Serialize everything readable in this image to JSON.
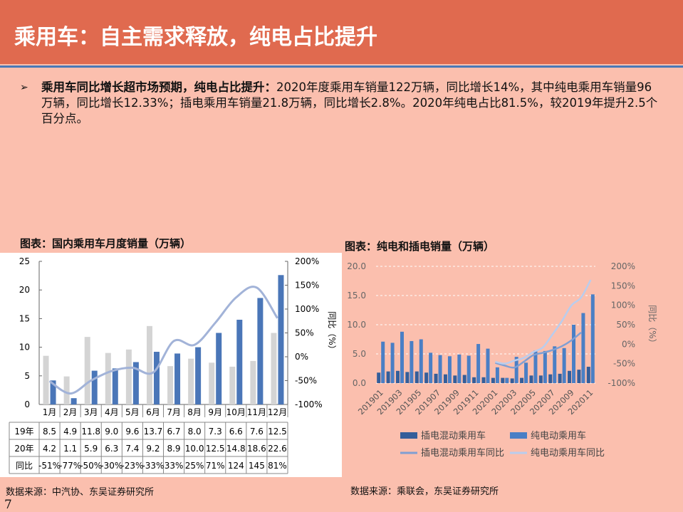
{
  "header": {
    "title": "乘用车：自主需求释放，纯电占比提升"
  },
  "bullet": {
    "marker": "➢",
    "lead": "乘用车同比增长超市场预期，纯电占比提升：",
    "text": "2020年度乘用车销量122万辆，同比增长14%，其中纯电乘用车销量96万辆，同比增长12.33%；插电乘用车销量21.8万辆，同比增长2.8%。2020年纯电占比81.5%，较2019年提升2.5个百分点。"
  },
  "chart_left_title": "图表：国内乘用车月度销量（万辆）",
  "chart_right_title": "图表：纯电和插电销量（万辆）",
  "source_left": "数据来源：中汽协、东吴证券研究所",
  "source_right": "数据来源：乘联会，东吴证券研究所",
  "page_number": "7",
  "colors": {
    "header_bg": "#e06a4f",
    "page_bg": "#fbbfae",
    "series_2019": "#d4d4d4",
    "series_2020": "#4a76b8",
    "yoy_line": "#a2b3d8",
    "phev": "#345e9a",
    "bev": "#4a7fc5",
    "phev_yoy": "#7f9fd3",
    "bev_yoy": "#b9cdee"
  },
  "chart_data": [
    {
      "type": "bar",
      "categories": [
        "1月",
        "2月",
        "3月",
        "4月",
        "5月",
        "6月",
        "7月",
        "8月",
        "9月",
        "10月",
        "11月",
        "12月"
      ],
      "series": [
        {
          "name": "19年",
          "values": [
            8.5,
            4.9,
            11.8,
            9.0,
            9.6,
            13.7,
            6.7,
            8.0,
            7.3,
            6.6,
            7.6,
            12.5
          ]
        },
        {
          "name": "20年",
          "values": [
            4.2,
            1.1,
            5.9,
            6.3,
            7.4,
            9.2,
            8.9,
            10.0,
            12.5,
            14.8,
            18.6,
            22.6
          ]
        },
        {
          "name": "同比",
          "axis": "right",
          "type": "line",
          "values": [
            -51,
            -77,
            -50,
            -30,
            -23,
            -33,
            33,
            25,
            71,
            124,
            145,
            81
          ]
        }
      ],
      "table": {
        "row_labels": [
          "19年",
          "20年",
          "同比"
        ],
        "rows": [
          [
            "8.5",
            "4.9",
            "11.8",
            "9.0",
            "9.6",
            "13.7",
            "6.7",
            "8.0",
            "7.3",
            "6.6",
            "7.6",
            "12.5"
          ],
          [
            "4.2",
            "1.1",
            "5.9",
            "6.3",
            "7.4",
            "9.2",
            "8.9",
            "10.0",
            "12.5",
            "14.8",
            "18.6",
            "22.6"
          ],
          [
            "-51%",
            "-77%",
            "-50%",
            "-30%",
            "-23%",
            "-33%",
            "33%",
            "25%",
            "71%",
            "124",
            "145",
            "81%"
          ]
        ]
      },
      "ylim": [
        0,
        25
      ],
      "yticks": [
        "0",
        "5",
        "10",
        "15",
        "20",
        "25"
      ],
      "y2lim": [
        -100,
        200
      ],
      "y2ticks": [
        "-100%",
        "-50%",
        "0%",
        "50%",
        "100%",
        "150%",
        "200%"
      ],
      "y2label": "同比（%）",
      "grid": false
    },
    {
      "type": "bar",
      "categories": [
        "201901",
        "201902",
        "201903",
        "201904",
        "201905",
        "201906",
        "201907",
        "201908",
        "201909",
        "201910",
        "201911",
        "201912",
        "202001",
        "202002",
        "202003",
        "202004",
        "202005",
        "202006",
        "202007",
        "202008",
        "202009",
        "202010",
        "202011"
      ],
      "x_tick_labels": [
        "201901",
        "201903",
        "201905",
        "201907",
        "201909",
        "201911",
        "202001",
        "202003",
        "202005",
        "202007",
        "202009",
        "202011"
      ],
      "series": [
        {
          "name": "插电混动乘用车",
          "values": [
            1.8,
            2.0,
            2.1,
            1.9,
            2.0,
            1.8,
            1.6,
            1.5,
            1.3,
            1.4,
            1.0,
            1.0,
            0.9,
            0.9,
            0.8,
            0.9,
            1.3,
            1.3,
            1.5,
            1.6,
            2.1,
            2.3,
            2.8
          ]
        },
        {
          "name": "纯电动乘用车",
          "values": [
            7.1,
            6.9,
            8.8,
            7.2,
            7.5,
            5.2,
            4.8,
            4.6,
            4.9,
            4.7,
            6.7,
            5.9,
            2.7,
            0.9,
            4.5,
            3.5,
            5.6,
            5.5,
            6.3,
            6.0,
            10.0,
            12.0,
            15.2
          ]
        },
        {
          "name": "插电混动乘用车同比",
          "axis": "right",
          "type": "line",
          "values": [
            null,
            null,
            null,
            null,
            null,
            null,
            null,
            null,
            null,
            null,
            null,
            null,
            -48,
            -55,
            -60,
            -45,
            -28,
            -22,
            -15,
            -5,
            10,
            30,
            null
          ]
        },
        {
          "name": "纯电动乘用车同比",
          "axis": "right",
          "type": "line",
          "values": [
            null,
            null,
            null,
            null,
            null,
            null,
            null,
            null,
            null,
            null,
            null,
            null,
            -45,
            -50,
            -42,
            -35,
            -20,
            -8,
            25,
            60,
            100,
            120,
            165
          ]
        }
      ],
      "ylim": [
        0,
        20
      ],
      "yticks": [
        "0.0",
        "5.0",
        "10.0",
        "15.0",
        "20.0"
      ],
      "y2lim": [
        -100,
        200
      ],
      "y2ticks": [
        "-100%",
        "-50%",
        "0%",
        "50%",
        "100%",
        "150%",
        "200%"
      ],
      "y2label": "同比（%）",
      "grid": true,
      "legend": "bottom"
    }
  ]
}
